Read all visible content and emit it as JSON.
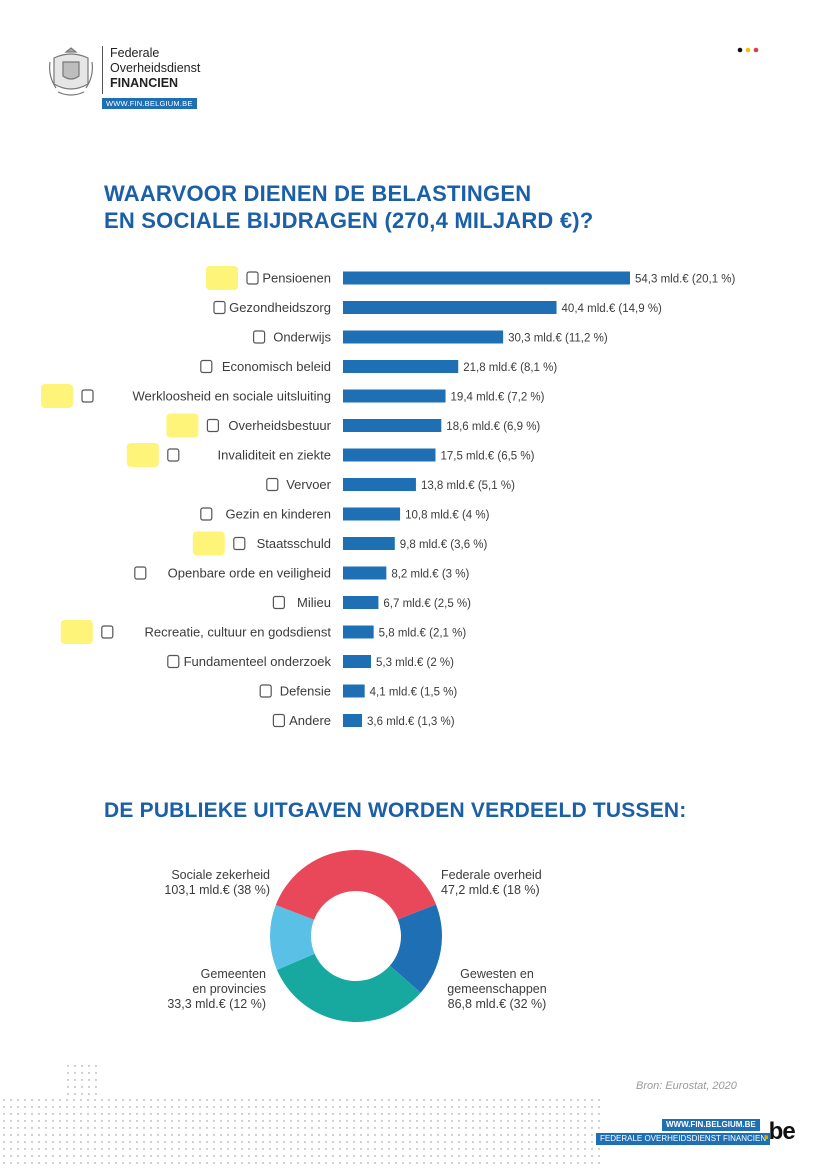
{
  "header": {
    "org_line1": "Federale",
    "org_line2": "Overheidsdienst",
    "org_line3": "FINANCIEN",
    "url": "WWW.FIN.BELGIUM.BE"
  },
  "flag_colors": [
    "#111111",
    "#f2c200",
    "#e63946"
  ],
  "section1": {
    "title_line1": "WAARVOOR DIENEN DE BELASTINGEN",
    "title_line2": "EN SOCIALE BIJDRAGEN (270,4 MILJARD €)?"
  },
  "section2": {
    "title": "DE PUBLIEKE UITGAVEN WORDEN VERDEELD TUSSEN:"
  },
  "chart_data": [
    {
      "type": "bar",
      "orientation": "horizontal",
      "title": "WAARVOOR DIENEN DE BELASTINGEN EN SOCIALE BIJDRAGEN (270,4 MILJARD €)?",
      "bar_color": "#1f6fb5",
      "categories": [
        "Pensioenen",
        "Gezondheidszorg",
        "Onderwijs",
        "Economisch beleid",
        "Werkloosheid en sociale uitsluiting",
        "Overheidsbestuur",
        "Invaliditeit en ziekte",
        "Vervoer",
        "Gezin en kinderen",
        "Staatsschuld",
        "Openbare orde en veiligheid",
        "Milieu",
        "Recreatie, cultuur en godsdienst",
        "Fundamenteel onderzoek",
        "Defensie",
        "Andere"
      ],
      "icons": [
        "person-cane-icon",
        "stethoscope-icon",
        "graduation-cap-icon",
        "money-bag-icon",
        "id-card-icon",
        "government-building-icon",
        "wheelchair-icon",
        "bus-icon",
        "family-icon",
        "euro-coin-icon",
        "police-officer-icon",
        "hand-plant-icon",
        "theater-masks-icon",
        "microscope-icon",
        "soldier-icon",
        "book-icon"
      ],
      "values": [
        54.3,
        40.4,
        30.3,
        21.8,
        19.4,
        18.6,
        17.5,
        13.8,
        10.8,
        9.8,
        8.2,
        6.7,
        5.8,
        5.3,
        4.1,
        3.6
      ],
      "value_labels": [
        "54,3 mld.€ (20,1 %)",
        "40,4 mld.€ (14,9 %)",
        "30,3 mld.€ (11,2 %)",
        "21,8 mld.€ (8,1 %)",
        "19,4 mld.€ (7,2 %)",
        "18,6 mld.€ (6,9 %)",
        "17,5 mld.€ (6,5 %)",
        "13,8 mld.€ (5,1 %)",
        "10,8 mld.€ (4 %)",
        "9,8 mld.€ (3,6 %)",
        "8,2 mld.€ (3 %)",
        "6,7 mld.€ (2,5 %)",
        "5,8 mld.€ (2,1 %)",
        "5,3 mld.€ (2 %)",
        "4,1 mld.€ (1,5 %)",
        "3,6 mld.€ (1,3 %)"
      ],
      "highlighted": [
        "Pensioenen",
        "Werkloosheid en sociale uitsluiting",
        "Overheidsbestuur",
        "Invaliditeit en ziekte",
        "Staatsschuld",
        "Recreatie, cultuur en godsdienst"
      ],
      "highlight_color": "#fff36b"
    },
    {
      "type": "pie",
      "variant": "donut",
      "title": "DE PUBLIEKE UITGAVEN WORDEN VERDEELD TUSSEN:",
      "slices": [
        {
          "label_lines": [
            "Federale overheid",
            "47,2 mld.€ (18 %)"
          ],
          "value": 47.2,
          "percent": 18,
          "color": "#1f6fb5"
        },
        {
          "label_lines": [
            "Gewesten en",
            "gemeenschappen",
            "86,8 mld.€ (32 %)"
          ],
          "value": 86.8,
          "percent": 32,
          "color": "#17a9a0"
        },
        {
          "label_lines": [
            "Gemeenten",
            "en provincies",
            "33,3 mld.€ (12 %)"
          ],
          "value": 33.3,
          "percent": 12,
          "color": "#5bc0e6"
        },
        {
          "label_lines": [
            "Sociale zekerheid",
            "103,1 mld.€ (38 %)"
          ],
          "value": 103.1,
          "percent": 38,
          "color": "#e8485a"
        }
      ]
    }
  ],
  "footer": {
    "source": "Bron: Eurostat, 2020",
    "url": "WWW.FIN.BELGIUM.BE",
    "org": "FEDERALE OVERHEIDSDIENST FINANCIEN",
    "be_text": "be",
    "be_dot": "."
  }
}
